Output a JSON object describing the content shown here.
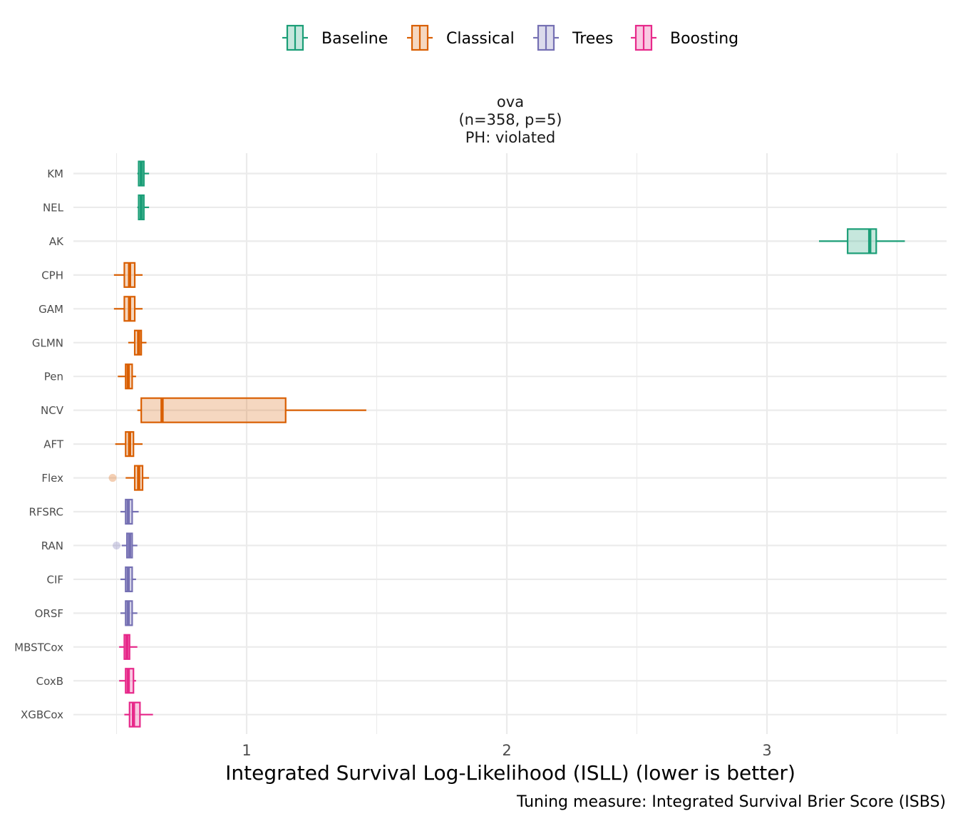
{
  "chart_data": {
    "type": "boxplot",
    "facet": {
      "title_line1": "ova",
      "title_line2": "(n=358, p=5)",
      "title_line3": "PH: violated"
    },
    "xlabel": "Integrated Survival Log-Likelihood (ISLL) (lower is better)",
    "caption": "Tuning measure: Integrated Survival Brier Score (ISBS)",
    "x_ticks": [
      1,
      2,
      3
    ],
    "x_tick_labels": [
      "1",
      "2",
      "3"
    ],
    "xlim": [
      0.35,
      3.65
    ],
    "legend": {
      "position": "top",
      "entries": [
        {
          "name": "Baseline",
          "color": "#1b9e77"
        },
        {
          "name": "Classical",
          "color": "#d95f02"
        },
        {
          "name": "Trees",
          "color": "#7570b3"
        },
        {
          "name": "Boosting",
          "color": "#e7298a"
        }
      ]
    },
    "boxes": [
      {
        "model": "KM",
        "group": "Baseline",
        "whisker_low": 0.58,
        "q1": 0.585,
        "median": 0.595,
        "q3": 0.605,
        "whisker_high": 0.625,
        "outliers": []
      },
      {
        "model": "NEL",
        "group": "Baseline",
        "whisker_low": 0.58,
        "q1": 0.585,
        "median": 0.595,
        "q3": 0.605,
        "whisker_high": 0.625,
        "outliers": []
      },
      {
        "model": "AK",
        "group": "Baseline",
        "whisker_low": 3.2,
        "q1": 3.31,
        "median": 3.395,
        "q3": 3.42,
        "whisker_high": 3.53,
        "outliers": []
      },
      {
        "model": "CPH",
        "group": "Classical",
        "whisker_low": 0.49,
        "q1": 0.53,
        "median": 0.55,
        "q3": 0.57,
        "whisker_high": 0.6,
        "outliers": []
      },
      {
        "model": "GAM",
        "group": "Classical",
        "whisker_low": 0.49,
        "q1": 0.53,
        "median": 0.55,
        "q3": 0.57,
        "whisker_high": 0.6,
        "outliers": []
      },
      {
        "model": "GLMN",
        "group": "Classical",
        "whisker_low": 0.545,
        "q1": 0.57,
        "median": 0.585,
        "q3": 0.595,
        "whisker_high": 0.615,
        "outliers": []
      },
      {
        "model": "Pen",
        "group": "Classical",
        "whisker_low": 0.505,
        "q1": 0.535,
        "median": 0.545,
        "q3": 0.56,
        "whisker_high": 0.575,
        "outliers": []
      },
      {
        "model": "NCV",
        "group": "Classical",
        "whisker_low": 0.58,
        "q1": 0.595,
        "median": 0.675,
        "q3": 1.15,
        "whisker_high": 1.46,
        "outliers": []
      },
      {
        "model": "AFT",
        "group": "Classical",
        "whisker_low": 0.495,
        "q1": 0.535,
        "median": 0.55,
        "q3": 0.565,
        "whisker_high": 0.6,
        "outliers": []
      },
      {
        "model": "Flex",
        "group": "Classical",
        "whisker_low": 0.535,
        "q1": 0.57,
        "median": 0.585,
        "q3": 0.6,
        "whisker_high": 0.625,
        "outliers": [
          0.485
        ]
      },
      {
        "model": "RFSRC",
        "group": "Trees",
        "whisker_low": 0.515,
        "q1": 0.535,
        "median": 0.545,
        "q3": 0.56,
        "whisker_high": 0.585,
        "outliers": []
      },
      {
        "model": "RAN",
        "group": "Trees",
        "whisker_low": 0.52,
        "q1": 0.54,
        "median": 0.55,
        "q3": 0.56,
        "whisker_high": 0.58,
        "outliers": [
          0.5
        ]
      },
      {
        "model": "CIF",
        "group": "Trees",
        "whisker_low": 0.515,
        "q1": 0.535,
        "median": 0.545,
        "q3": 0.56,
        "whisker_high": 0.575,
        "outliers": []
      },
      {
        "model": "ORSF",
        "group": "Trees",
        "whisker_low": 0.515,
        "q1": 0.535,
        "median": 0.545,
        "q3": 0.56,
        "whisker_high": 0.58,
        "outliers": []
      },
      {
        "model": "MBSTCox",
        "group": "Boosting",
        "whisker_low": 0.51,
        "q1": 0.53,
        "median": 0.54,
        "q3": 0.55,
        "whisker_high": 0.58,
        "outliers": []
      },
      {
        "model": "CoxB",
        "group": "Boosting",
        "whisker_low": 0.51,
        "q1": 0.535,
        "median": 0.545,
        "q3": 0.565,
        "whisker_high": 0.575,
        "outliers": []
      },
      {
        "model": "XGBCox",
        "group": "Boosting",
        "whisker_low": 0.53,
        "q1": 0.55,
        "median": 0.565,
        "q3": 0.59,
        "whisker_high": 0.64,
        "outliers": []
      }
    ]
  }
}
